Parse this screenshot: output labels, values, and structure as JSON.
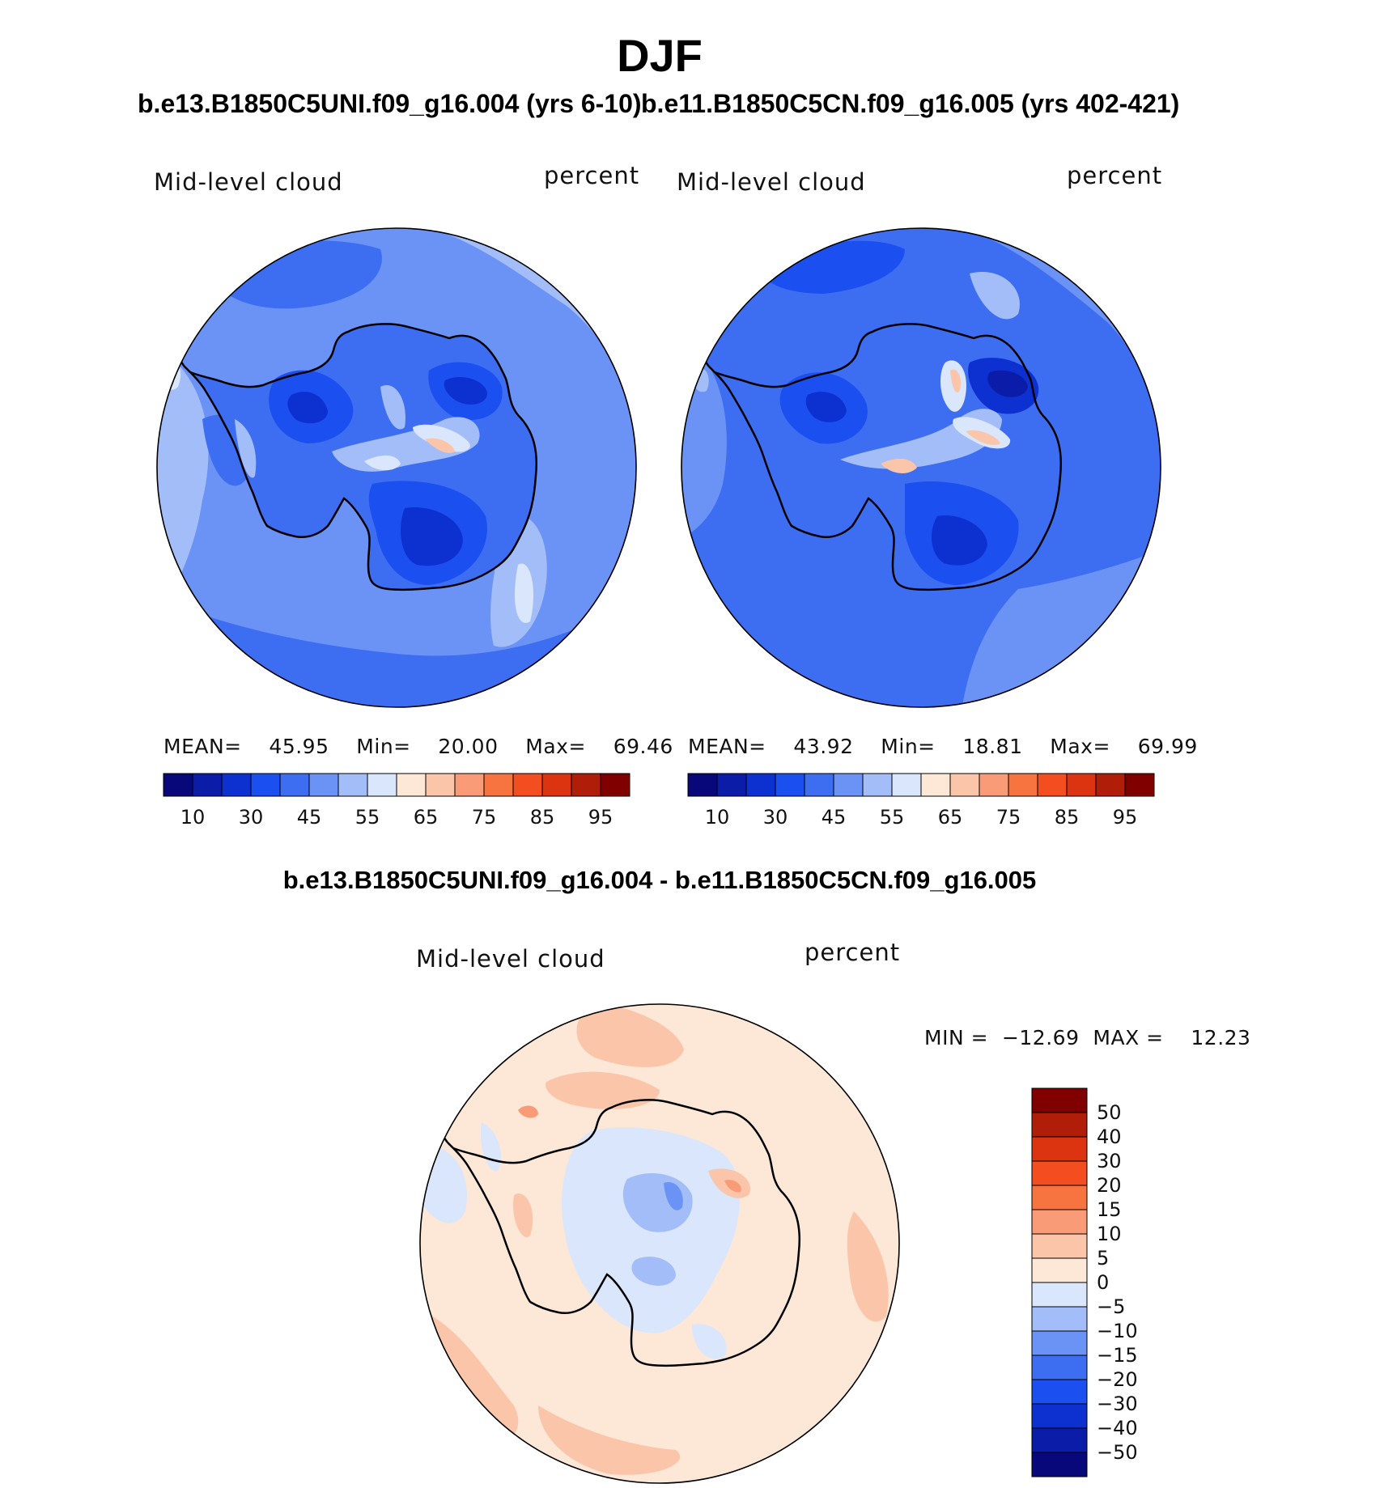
{
  "figure": {
    "title": "DJF",
    "subtitle_left": "b.e13.B1850C5UNI.f09_g16.004 (yrs 6-10)",
    "subtitle_right": "b.e11.B1850C5CN.f09_g16.005 (yrs 402-421)",
    "diff_title": "b.e13.B1850C5UNI.f09_g16.004 - b.e11.B1850C5CN.f09_g16.005"
  },
  "chart_data": [
    {
      "type": "heatmap",
      "projection": "south polar stereographic",
      "variable": "Mid-level cloud",
      "units": "percent",
      "stats": {
        "mean_label": "MEAN=",
        "mean": "45.95",
        "min_label": "Min=",
        "min": "20.00",
        "max_label": "Max=",
        "max": "69.46"
      },
      "colorbar": {
        "levels": [
          5,
          10,
          20,
          30,
          40,
          45,
          50,
          55,
          60,
          65,
          70,
          75,
          80,
          85,
          90,
          95
        ],
        "tick_labels": [
          "10",
          "30",
          "45",
          "55",
          "65",
          "75",
          "85",
          "95"
        ],
        "colors": [
          "#08087a",
          "#0a1ca8",
          "#0d30d1",
          "#1c4ff0",
          "#3d6ef2",
          "#6b92f5",
          "#a3bdf8",
          "#d9e6fb",
          "#fde7d7",
          "#fbc5aa",
          "#f99b76",
          "#f7733f",
          "#f44d1f",
          "#dc3310",
          "#b01e09",
          "#800000"
        ]
      }
    },
    {
      "type": "heatmap",
      "projection": "south polar stereographic",
      "variable": "Mid-level cloud",
      "units": "percent",
      "stats": {
        "mean_label": "MEAN=",
        "mean": "43.92",
        "min_label": "Min=",
        "min": "18.81",
        "max_label": "Max=",
        "max": "69.99"
      },
      "colorbar": {
        "levels": [
          5,
          10,
          20,
          30,
          40,
          45,
          50,
          55,
          60,
          65,
          70,
          75,
          80,
          85,
          90,
          95
        ],
        "tick_labels": [
          "10",
          "30",
          "45",
          "55",
          "65",
          "75",
          "85",
          "95"
        ],
        "colors": [
          "#08087a",
          "#0a1ca8",
          "#0d30d1",
          "#1c4ff0",
          "#3d6ef2",
          "#6b92f5",
          "#a3bdf8",
          "#d9e6fb",
          "#fde7d7",
          "#fbc5aa",
          "#f99b76",
          "#f7733f",
          "#f44d1f",
          "#dc3310",
          "#b01e09",
          "#800000"
        ]
      }
    },
    {
      "type": "heatmap",
      "projection": "south polar stereographic",
      "variable": "Mid-level cloud",
      "units": "percent",
      "stats": {
        "min_label": "MIN =",
        "min": "−12.69",
        "max_label": "MAX =",
        "max": "12.23"
      },
      "colorbar": {
        "orientation": "vertical",
        "tick_labels": [
          "50",
          "40",
          "30",
          "20",
          "15",
          "10",
          "5",
          "0",
          "−5",
          "−10",
          "−15",
          "−20",
          "−30",
          "−40",
          "−50"
        ],
        "colors": [
          "#800000",
          "#b01e09",
          "#dc3310",
          "#f44d1f",
          "#f7733f",
          "#f99b76",
          "#fbc5aa",
          "#fde7d7",
          "#d9e6fb",
          "#a3bdf8",
          "#6b92f5",
          "#3d6ef2",
          "#1c4ff0",
          "#0d30d1",
          "#0a1ca8",
          "#08087a"
        ]
      }
    }
  ]
}
